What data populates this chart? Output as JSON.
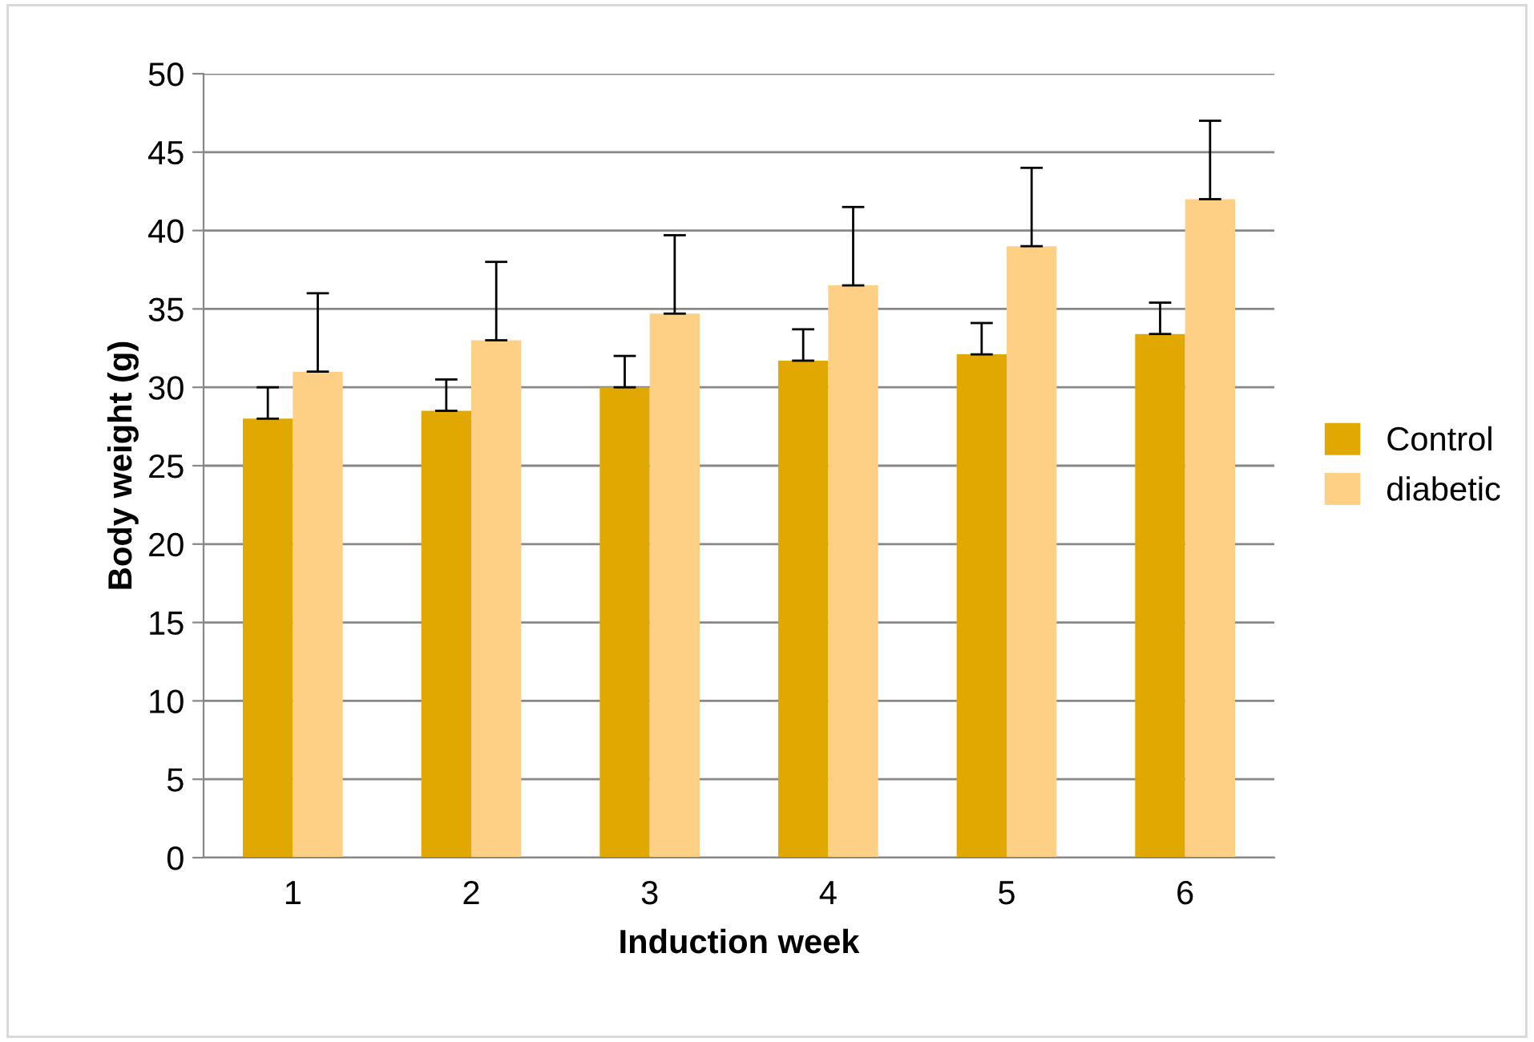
{
  "chart_data": {
    "type": "bar",
    "xlabel": "Induction week",
    "ylabel": "Body weight (g)",
    "categories": [
      "1",
      "2",
      "3",
      "4",
      "5",
      "6"
    ],
    "series": [
      {
        "name": "Control",
        "color": "#e0a800",
        "values": [
          28,
          28.5,
          30,
          31.7,
          32.1,
          33.4
        ],
        "errors": [
          [
            28,
            30
          ],
          [
            28.5,
            30.5
          ],
          [
            30,
            32
          ],
          [
            31.7,
            33.7
          ],
          [
            32.1,
            34.1
          ],
          [
            33.4,
            35.4
          ]
        ]
      },
      {
        "name": "diabetic",
        "color": "#fdd086",
        "values": [
          31,
          33,
          34.7,
          36.5,
          39,
          42
        ],
        "errors": [
          [
            31,
            36
          ],
          [
            33,
            38
          ],
          [
            34.7,
            39.7
          ],
          [
            36.5,
            41.5
          ],
          [
            39,
            44
          ],
          [
            42,
            47
          ]
        ]
      }
    ],
    "ylim": [
      0,
      50
    ],
    "yticks": [
      0,
      5,
      10,
      15,
      20,
      25,
      30,
      35,
      40,
      45,
      50
    ],
    "grid": "y",
    "legend": "right"
  }
}
